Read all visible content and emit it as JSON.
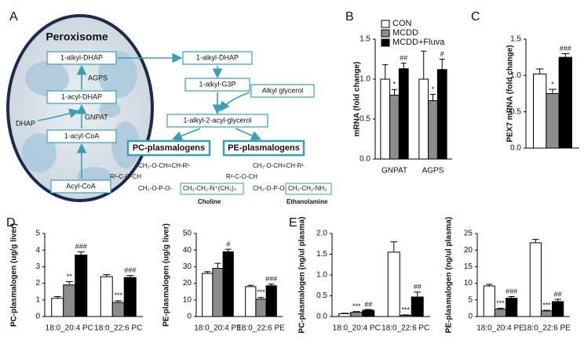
{
  "diagram": {
    "panel": "A",
    "organelle": "Peroxisome",
    "nodes": [
      "1-alkyl-DHAP",
      "1-acyl-DHAP",
      "1-acyl-CoA",
      "Acyl-CoA",
      "1-alkyl-DHAP",
      "1-alkyl-G3P",
      "Alkyl glycerol",
      "1-alkyl-2-acyl-glycerol"
    ],
    "enzymes": [
      "AGPS",
      "GNPAT"
    ],
    "substrate": "DHAP",
    "products": [
      "PC-plasmalogens",
      "PE-plasmalogens"
    ],
    "structures": [
      {
        "lines": [
          "CH₂-O-CH=CH-R¹",
          "R²-C-O-CH",
          "CH₂-O-P-O-",
          "CH₂-CH₂-N⁺(CH₃)₃"
        ],
        "head": "Choline"
      },
      {
        "lines": [
          "CH₂-O-CH=CH-R¹",
          "R²-C-O-CH",
          "CH₂-O-P-O-",
          "CH₂-CH₂-NH₂"
        ],
        "head": "Ethanolamine"
      }
    ]
  },
  "chart_data": [
    {
      "type": "bar",
      "panel": "B",
      "y_label": "mRNA (fold change)",
      "categories": [
        "GNPAT",
        "AGPS"
      ],
      "legend": true,
      "legend_position": "top-right",
      "ylim": [
        0,
        1.5
      ],
      "yticks": [
        {
          "value": 0,
          "label": "0.0"
        },
        0.5,
        {
          "value": 1,
          "label": "1.0"
        },
        1.5
      ],
      "series": [
        {
          "name": "CON",
          "color": "#ffffff",
          "values": [
            1.0,
            1.0
          ],
          "errors": [
            0.18,
            0.35
          ],
          "significance": [
            null,
            null
          ]
        },
        {
          "name": "MCDD",
          "color": "#8c8c8c",
          "values": [
            0.8,
            0.73
          ],
          "errors": [
            0.07,
            0.08
          ],
          "significance": [
            "*",
            "*"
          ]
        },
        {
          "name": "MCDD+Fluva",
          "color": "#000000",
          "values": [
            1.13,
            1.12
          ],
          "errors": [
            0.07,
            0.13
          ],
          "significance": [
            "##",
            "#"
          ]
        }
      ]
    },
    {
      "type": "bar",
      "panel": "C",
      "y_label": "PEX7 mRNA (fold change)",
      "categories": [
        null
      ],
      "ylim": [
        0,
        1.5
      ],
      "yticks": [
        {
          "value": 0,
          "label": "0.0"
        },
        0.5,
        {
          "value": 1,
          "label": "1.0"
        },
        1.5
      ],
      "series": [
        {
          "color": "#ffffff",
          "values": [
            1.02
          ],
          "errors": [
            0.07
          ],
          "significance": [
            null
          ]
        },
        {
          "color": "#8c8c8c",
          "values": [
            0.75
          ],
          "errors": [
            0.06
          ],
          "significance": [
            "*"
          ]
        },
        {
          "color": "#000000",
          "values": [
            1.25
          ],
          "errors": [
            0.05
          ],
          "significance": [
            "###"
          ]
        }
      ]
    },
    {
      "type": "bar",
      "panel": "D",
      "y_label": "PC-plasmalogen (ug/g liver)",
      "categories": [
        "18:0_20:4 PC",
        "18:0_22:6 PC"
      ],
      "ylim": [
        0,
        5
      ],
      "yticks": [
        0,
        1,
        2,
        3,
        4,
        5
      ],
      "series": [
        {
          "color": "#ffffff",
          "values": [
            1.1,
            2.4
          ],
          "errors": [
            0.1,
            0.12
          ],
          "significance": [
            null,
            null
          ]
        },
        {
          "color": "#8c8c8c",
          "values": [
            1.9,
            0.85
          ],
          "errors": [
            0.2,
            0.1
          ],
          "significance": [
            "**",
            "***"
          ]
        },
        {
          "color": "#000000",
          "values": [
            3.7,
            2.35
          ],
          "errors": [
            0.2,
            0.12
          ],
          "significance": [
            "###",
            "###"
          ]
        }
      ]
    },
    {
      "type": "bar",
      "y_label": "PE-plasmalogen (ug/g liver)",
      "categories": [
        "18:0_20:4 PE",
        "18:0_22:6 PE"
      ],
      "ylim": [
        0,
        50
      ],
      "yticks": [
        0,
        10,
        20,
        30,
        40,
        50
      ],
      "series": [
        {
          "color": "#ffffff",
          "values": [
            26,
            18
          ],
          "errors": [
            1,
            0.8
          ],
          "significance": [
            null,
            null
          ]
        },
        {
          "color": "#8c8c8c",
          "values": [
            29,
            10.5
          ],
          "errors": [
            3,
            1
          ],
          "significance": [
            null,
            "***"
          ]
        },
        {
          "color": "#000000",
          "values": [
            39,
            18.5
          ],
          "errors": [
            1.5,
            1
          ],
          "significance": [
            "#",
            "###"
          ]
        }
      ]
    },
    {
      "type": "bar",
      "panel": "E",
      "y_label": "PC-plasmalogen (ng/ul plasma)",
      "categories": [
        "18:0_20:4 PC",
        "18:0_22:6 PC"
      ],
      "ylim": [
        0,
        2
      ],
      "yticks": [
        {
          "value": 0,
          "label": "0.0"
        },
        0.5,
        {
          "value": 1,
          "label": "1.0"
        },
        1.5,
        {
          "value": 2,
          "label": "2.0"
        }
      ],
      "series": [
        {
          "color": "#ffffff",
          "values": [
            0.07,
            1.55
          ],
          "errors": [
            0.01,
            0.25
          ],
          "significance": [
            null,
            null
          ]
        },
        {
          "color": "#8c8c8c",
          "values": [
            0.1,
            0.03
          ],
          "errors": [
            0.02,
            0.01
          ],
          "significance": [
            "***",
            "***"
          ]
        },
        {
          "color": "#000000",
          "values": [
            0.15,
            0.47
          ],
          "errors": [
            0.02,
            0.12
          ],
          "significance": [
            "##",
            "##"
          ]
        }
      ]
    },
    {
      "type": "bar",
      "y_label": "PE-plasmalogen (ng/ul plasma)",
      "categories": [
        "18:0_20:4 PE",
        "18:0_22:6 PE"
      ],
      "ylim": [
        0,
        25
      ],
      "yticks": [
        0,
        5,
        10,
        15,
        20,
        25
      ],
      "series": [
        {
          "color": "#ffffff",
          "values": [
            9.2,
            22.2
          ],
          "errors": [
            0.5,
            1
          ],
          "significance": [
            null,
            null
          ]
        },
        {
          "color": "#8c8c8c",
          "values": [
            2.2,
            1.7
          ],
          "errors": [
            0.3,
            0.2
          ],
          "significance": [
            "***",
            "***"
          ]
        },
        {
          "color": "#000000",
          "values": [
            5.5,
            4.5
          ],
          "errors": [
            0.5,
            0.7
          ],
          "significance": [
            "###",
            "##"
          ]
        }
      ]
    }
  ]
}
